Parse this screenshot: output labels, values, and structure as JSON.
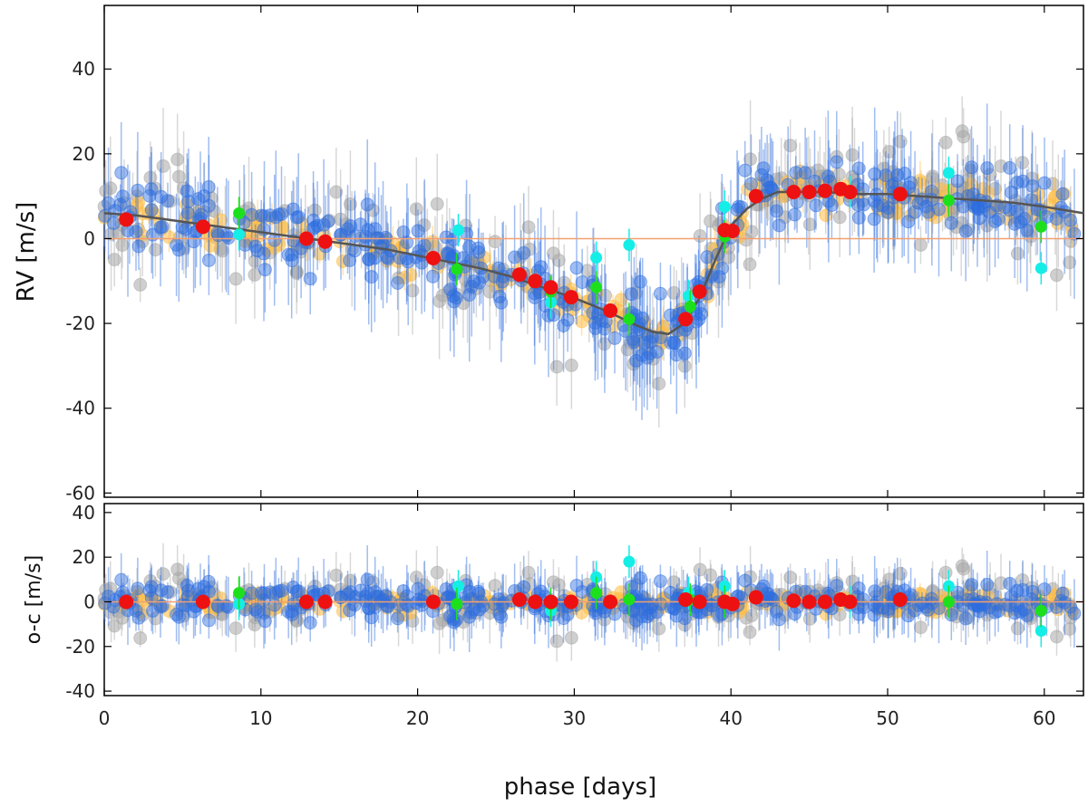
{
  "chart_data": [
    {
      "type": "scatter",
      "panel": "top",
      "title": "",
      "xlabel": "phase [days]",
      "ylabel": "RV [m/s]",
      "xlim": [
        0,
        62.5
      ],
      "ylim": [
        -61,
        55
      ],
      "xticks": [
        0,
        10,
        20,
        30,
        40,
        50,
        60
      ],
      "yticks": [
        -60,
        -40,
        -20,
        0,
        20,
        40
      ],
      "xtick_labels": [
        "0",
        "10",
        "20",
        "30",
        "40",
        "50",
        "60"
      ],
      "ytick_labels": [
        "-60",
        "-40",
        "-20",
        "0",
        "20",
        "40"
      ],
      "colors": {
        "blue": "#2c6de0",
        "gray": "#a8a8a8",
        "orange": "#ffbe46",
        "red": "#ee1111",
        "green": "#1de01d",
        "cyan": "#15eee6",
        "model": "#555555",
        "zero": "#f2a070"
      },
      "model_curve": {
        "name": "Keplerian model",
        "x": [
          0,
          2,
          4,
          6,
          8,
          10,
          12,
          14,
          16,
          18,
          20,
          22,
          24,
          26,
          28,
          30,
          32,
          34,
          35,
          36,
          37,
          38,
          39,
          40,
          41,
          42,
          43,
          44,
          46,
          48,
          50,
          52,
          54,
          56,
          58,
          60,
          62.5
        ],
        "y": [
          6,
          5.5,
          4.5,
          3.5,
          2.5,
          1.5,
          0.5,
          -0.5,
          -1.5,
          -2.5,
          -4,
          -5.5,
          -7,
          -9,
          -11.5,
          -14,
          -17,
          -20.5,
          -22,
          -22.5,
          -20,
          -14,
          -5,
          3,
          7,
          9.5,
          11,
          11,
          11,
          10.5,
          10.5,
          10,
          9.5,
          9,
          8.5,
          7.5,
          6
        ]
      },
      "series": [
        {
          "name": "red",
          "x": [
            1.4,
            6.3,
            12.9,
            14.1,
            21.0,
            26.5,
            27.5,
            28.5,
            29.8,
            32.3,
            37.1,
            38.0,
            39.6,
            40.1,
            41.6,
            44.0,
            45.0,
            46.0,
            47.0,
            47.6,
            50.8
          ],
          "y": [
            4.5,
            2.8,
            0.0,
            -0.7,
            -4.6,
            -8.5,
            -10.0,
            -11.5,
            -13.8,
            -17.0,
            -19.0,
            -12.5,
            2.0,
            1.8,
            10.0,
            11.0,
            11.0,
            11.3,
            11.7,
            11.0,
            10.5
          ]
        },
        {
          "name": "green",
          "x": [
            8.6,
            22.5,
            28.5,
            31.4,
            33.5,
            37.4,
            39.6,
            53.9,
            59.8
          ],
          "y": [
            6.0,
            -7.2,
            -12.5,
            -11.5,
            -19.0,
            -16.0,
            0.5,
            9.0,
            2.8
          ]
        },
        {
          "name": "cyan",
          "x": [
            8.6,
            22.6,
            28.5,
            31.4,
            33.5,
            37.3,
            39.6,
            47.6,
            53.9,
            59.8
          ],
          "y": [
            1.0,
            2.0,
            -15.0,
            -4.5,
            -1.5,
            -13.5,
            7.5,
            11.0,
            15.5,
            -7.0
          ]
        }
      ]
    },
    {
      "type": "scatter",
      "panel": "bottom",
      "title": "",
      "xlabel": "phase [days]",
      "ylabel": "o-c [m/s]",
      "xlim": [
        0,
        62.5
      ],
      "ylim": [
        -42,
        44
      ],
      "yticks": [
        -40,
        -20,
        0,
        20,
        40
      ],
      "ytick_labels": [
        "-40",
        "-20",
        "0",
        "20",
        "40"
      ],
      "series": [
        {
          "name": "red",
          "x": [
            1.4,
            6.3,
            12.9,
            14.1,
            21.0,
            26.5,
            27.5,
            28.5,
            29.8,
            32.3,
            37.1,
            38.0,
            39.6,
            40.1,
            41.6,
            44.0,
            45.0,
            46.0,
            47.0,
            47.6,
            50.8
          ],
          "y": [
            0,
            0,
            0,
            0,
            0,
            1,
            0,
            0,
            0,
            0,
            1,
            0,
            0,
            -1,
            2,
            0.5,
            0,
            0,
            1,
            0,
            1
          ]
        },
        {
          "name": "green",
          "x": [
            8.6,
            22.5,
            28.5,
            31.4,
            33.5,
            37.4,
            39.6,
            53.9,
            59.8
          ],
          "y": [
            4,
            -1,
            -1,
            4,
            1,
            1,
            0,
            0,
            -4
          ]
        },
        {
          "name": "cyan",
          "x": [
            8.6,
            22.6,
            28.5,
            31.4,
            33.5,
            37.3,
            39.6,
            47.6,
            53.9,
            59.8
          ],
          "y": [
            -1,
            7,
            -4,
            11,
            18,
            4,
            7,
            0,
            7,
            -13
          ]
        }
      ]
    }
  ]
}
